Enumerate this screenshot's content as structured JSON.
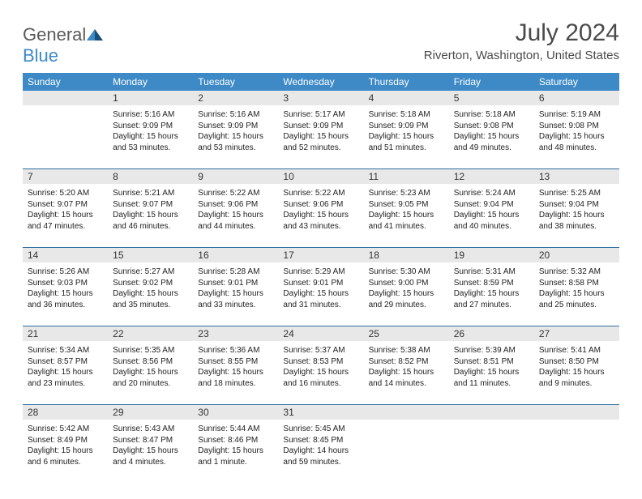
{
  "logo": {
    "text1": "General",
    "text2": "Blue"
  },
  "title": "July 2024",
  "location": "Riverton, Washington, United States",
  "colors": {
    "header_bg": "#3d8ac7",
    "header_text": "#ffffff",
    "date_bg": "#e8e8e8",
    "separator": "#2f6ea0",
    "logo_gray": "#5a5a5a",
    "logo_blue": "#3d8ac7",
    "body_text": "#222222"
  },
  "day_names": [
    "Sunday",
    "Monday",
    "Tuesday",
    "Wednesday",
    "Thursday",
    "Friday",
    "Saturday"
  ],
  "weeks": [
    {
      "dates": [
        "",
        "1",
        "2",
        "3",
        "4",
        "5",
        "6"
      ],
      "cells": [
        null,
        {
          "sunrise": "Sunrise: 5:16 AM",
          "sunset": "Sunset: 9:09 PM",
          "daylight1": "Daylight: 15 hours",
          "daylight2": "and 53 minutes."
        },
        {
          "sunrise": "Sunrise: 5:16 AM",
          "sunset": "Sunset: 9:09 PM",
          "daylight1": "Daylight: 15 hours",
          "daylight2": "and 53 minutes."
        },
        {
          "sunrise": "Sunrise: 5:17 AM",
          "sunset": "Sunset: 9:09 PM",
          "daylight1": "Daylight: 15 hours",
          "daylight2": "and 52 minutes."
        },
        {
          "sunrise": "Sunrise: 5:18 AM",
          "sunset": "Sunset: 9:09 PM",
          "daylight1": "Daylight: 15 hours",
          "daylight2": "and 51 minutes."
        },
        {
          "sunrise": "Sunrise: 5:18 AM",
          "sunset": "Sunset: 9:08 PM",
          "daylight1": "Daylight: 15 hours",
          "daylight2": "and 49 minutes."
        },
        {
          "sunrise": "Sunrise: 5:19 AM",
          "sunset": "Sunset: 9:08 PM",
          "daylight1": "Daylight: 15 hours",
          "daylight2": "and 48 minutes."
        }
      ]
    },
    {
      "dates": [
        "7",
        "8",
        "9",
        "10",
        "11",
        "12",
        "13"
      ],
      "cells": [
        {
          "sunrise": "Sunrise: 5:20 AM",
          "sunset": "Sunset: 9:07 PM",
          "daylight1": "Daylight: 15 hours",
          "daylight2": "and 47 minutes."
        },
        {
          "sunrise": "Sunrise: 5:21 AM",
          "sunset": "Sunset: 9:07 PM",
          "daylight1": "Daylight: 15 hours",
          "daylight2": "and 46 minutes."
        },
        {
          "sunrise": "Sunrise: 5:22 AM",
          "sunset": "Sunset: 9:06 PM",
          "daylight1": "Daylight: 15 hours",
          "daylight2": "and 44 minutes."
        },
        {
          "sunrise": "Sunrise: 5:22 AM",
          "sunset": "Sunset: 9:06 PM",
          "daylight1": "Daylight: 15 hours",
          "daylight2": "and 43 minutes."
        },
        {
          "sunrise": "Sunrise: 5:23 AM",
          "sunset": "Sunset: 9:05 PM",
          "daylight1": "Daylight: 15 hours",
          "daylight2": "and 41 minutes."
        },
        {
          "sunrise": "Sunrise: 5:24 AM",
          "sunset": "Sunset: 9:04 PM",
          "daylight1": "Daylight: 15 hours",
          "daylight2": "and 40 minutes."
        },
        {
          "sunrise": "Sunrise: 5:25 AM",
          "sunset": "Sunset: 9:04 PM",
          "daylight1": "Daylight: 15 hours",
          "daylight2": "and 38 minutes."
        }
      ]
    },
    {
      "dates": [
        "14",
        "15",
        "16",
        "17",
        "18",
        "19",
        "20"
      ],
      "cells": [
        {
          "sunrise": "Sunrise: 5:26 AM",
          "sunset": "Sunset: 9:03 PM",
          "daylight1": "Daylight: 15 hours",
          "daylight2": "and 36 minutes."
        },
        {
          "sunrise": "Sunrise: 5:27 AM",
          "sunset": "Sunset: 9:02 PM",
          "daylight1": "Daylight: 15 hours",
          "daylight2": "and 35 minutes."
        },
        {
          "sunrise": "Sunrise: 5:28 AM",
          "sunset": "Sunset: 9:01 PM",
          "daylight1": "Daylight: 15 hours",
          "daylight2": "and 33 minutes."
        },
        {
          "sunrise": "Sunrise: 5:29 AM",
          "sunset": "Sunset: 9:01 PM",
          "daylight1": "Daylight: 15 hours",
          "daylight2": "and 31 minutes."
        },
        {
          "sunrise": "Sunrise: 5:30 AM",
          "sunset": "Sunset: 9:00 PM",
          "daylight1": "Daylight: 15 hours",
          "daylight2": "and 29 minutes."
        },
        {
          "sunrise": "Sunrise: 5:31 AM",
          "sunset": "Sunset: 8:59 PM",
          "daylight1": "Daylight: 15 hours",
          "daylight2": "and 27 minutes."
        },
        {
          "sunrise": "Sunrise: 5:32 AM",
          "sunset": "Sunset: 8:58 PM",
          "daylight1": "Daylight: 15 hours",
          "daylight2": "and 25 minutes."
        }
      ]
    },
    {
      "dates": [
        "21",
        "22",
        "23",
        "24",
        "25",
        "26",
        "27"
      ],
      "cells": [
        {
          "sunrise": "Sunrise: 5:34 AM",
          "sunset": "Sunset: 8:57 PM",
          "daylight1": "Daylight: 15 hours",
          "daylight2": "and 23 minutes."
        },
        {
          "sunrise": "Sunrise: 5:35 AM",
          "sunset": "Sunset: 8:56 PM",
          "daylight1": "Daylight: 15 hours",
          "daylight2": "and 20 minutes."
        },
        {
          "sunrise": "Sunrise: 5:36 AM",
          "sunset": "Sunset: 8:55 PM",
          "daylight1": "Daylight: 15 hours",
          "daylight2": "and 18 minutes."
        },
        {
          "sunrise": "Sunrise: 5:37 AM",
          "sunset": "Sunset: 8:53 PM",
          "daylight1": "Daylight: 15 hours",
          "daylight2": "and 16 minutes."
        },
        {
          "sunrise": "Sunrise: 5:38 AM",
          "sunset": "Sunset: 8:52 PM",
          "daylight1": "Daylight: 15 hours",
          "daylight2": "and 14 minutes."
        },
        {
          "sunrise": "Sunrise: 5:39 AM",
          "sunset": "Sunset: 8:51 PM",
          "daylight1": "Daylight: 15 hours",
          "daylight2": "and 11 minutes."
        },
        {
          "sunrise": "Sunrise: 5:41 AM",
          "sunset": "Sunset: 8:50 PM",
          "daylight1": "Daylight: 15 hours",
          "daylight2": "and 9 minutes."
        }
      ]
    },
    {
      "dates": [
        "28",
        "29",
        "30",
        "31",
        "",
        "",
        ""
      ],
      "cells": [
        {
          "sunrise": "Sunrise: 5:42 AM",
          "sunset": "Sunset: 8:49 PM",
          "daylight1": "Daylight: 15 hours",
          "daylight2": "and 6 minutes."
        },
        {
          "sunrise": "Sunrise: 5:43 AM",
          "sunset": "Sunset: 8:47 PM",
          "daylight1": "Daylight: 15 hours",
          "daylight2": "and 4 minutes."
        },
        {
          "sunrise": "Sunrise: 5:44 AM",
          "sunset": "Sunset: 8:46 PM",
          "daylight1": "Daylight: 15 hours",
          "daylight2": "and 1 minute."
        },
        {
          "sunrise": "Sunrise: 5:45 AM",
          "sunset": "Sunset: 8:45 PM",
          "daylight1": "Daylight: 14 hours",
          "daylight2": "and 59 minutes."
        },
        null,
        null,
        null
      ]
    }
  ]
}
